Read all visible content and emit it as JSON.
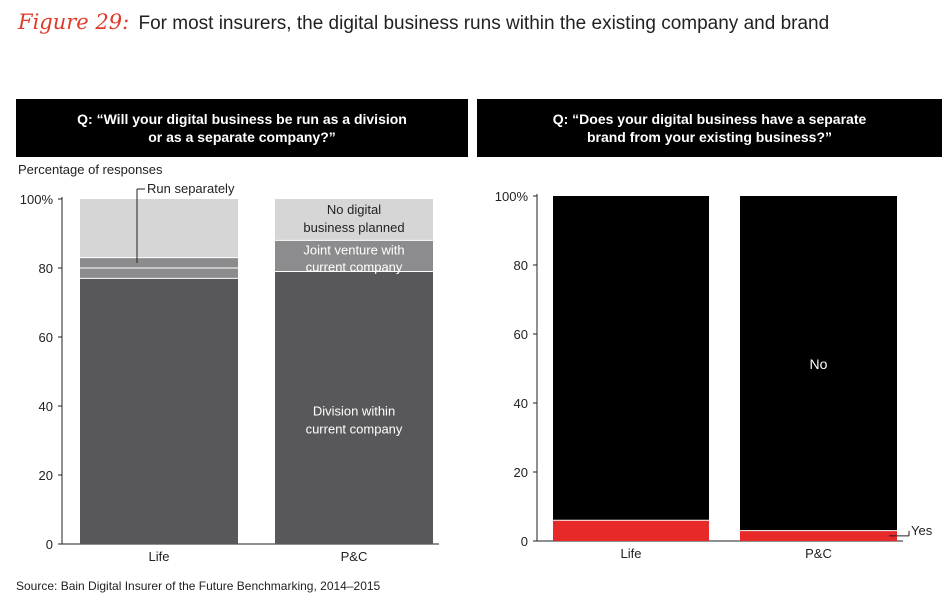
{
  "figure": {
    "label": "Figure 29:",
    "title": "For most insurers, the digital business runs within the existing company and brand"
  },
  "source": "Source: Bain Digital Insurer of the Future Benchmarking, 2014–2015",
  "colors": {
    "title_accent": "#e03a2b",
    "division": "#58585a",
    "run_separately": "#8c8c8e",
    "joint_venture": "#8c8c8e",
    "no_digital": "#d6d6d7",
    "no": "#000000",
    "yes": "#e8292a"
  },
  "chart_data": [
    {
      "type": "bar",
      "stacked": true,
      "question": [
        "Q: “Will your digital business be run as a division",
        "or as a separate company?”"
      ],
      "ylabel": "Percentage of responses",
      "categories": [
        "Life",
        "P&C"
      ],
      "ylim": [
        0,
        100
      ],
      "yticks": [
        "0",
        "20",
        "40",
        "60",
        "80",
        "100%"
      ],
      "series": [
        {
          "name": "Division within current company",
          "label_lines": [
            "Division within",
            "current company"
          ],
          "values": [
            77,
            79
          ]
        },
        {
          "name": "Joint venture with current company",
          "label_lines": [
            "Joint venture with",
            "current company"
          ],
          "values": [
            3,
            9
          ]
        },
        {
          "name": "Run separately",
          "label_lines": [
            "Run separately"
          ],
          "values": [
            3,
            0
          ]
        },
        {
          "name": "No digital business planned",
          "label_lines": [
            "No digital",
            "business planned"
          ],
          "values": [
            17,
            12
          ]
        }
      ]
    },
    {
      "type": "bar",
      "stacked": true,
      "question": [
        "Q: “Does your digital business have a separate",
        "brand from your existing business?”"
      ],
      "categories": [
        "Life",
        "P&C"
      ],
      "ylim": [
        0,
        100
      ],
      "yticks": [
        "0",
        "20",
        "40",
        "60",
        "80",
        "100%"
      ],
      "series": [
        {
          "name": "Yes",
          "values": [
            6,
            3
          ]
        },
        {
          "name": "No",
          "values": [
            94,
            97
          ]
        }
      ]
    }
  ]
}
